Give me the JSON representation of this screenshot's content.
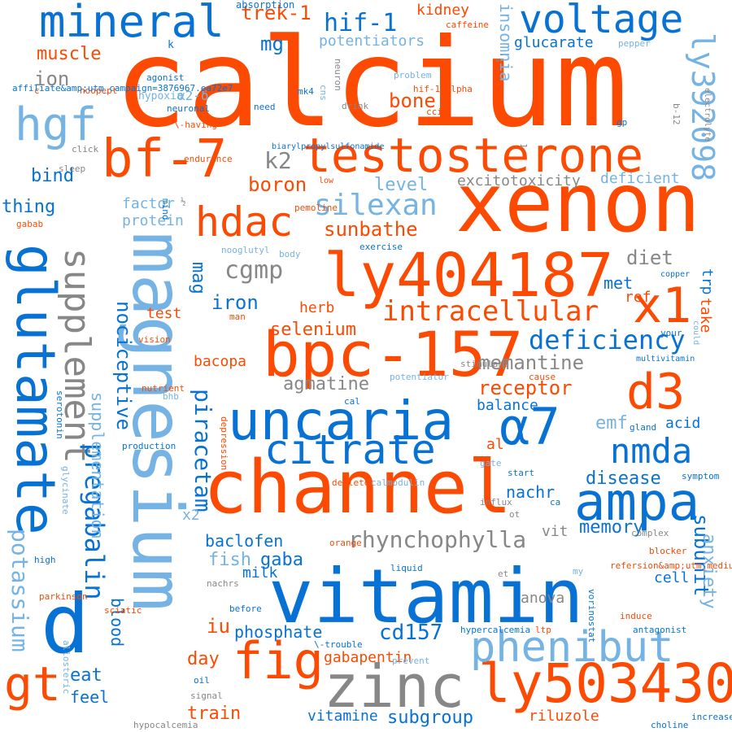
{
  "colors": {
    "orange": "#fc4a03",
    "blue": "#0872d4",
    "light_blue": "#74b3e3",
    "gray": "#878787"
  },
  "words": [
    {
      "text": "calcium",
      "color": "orange"
    },
    {
      "text": "magnesium",
      "color": "light_blue"
    },
    {
      "text": "xenon",
      "color": "orange"
    },
    {
      "text": "vitamin",
      "color": "blue"
    },
    {
      "text": "channel",
      "color": "orange"
    },
    {
      "text": "testosterone",
      "color": "orange"
    },
    {
      "text": "glutamate",
      "color": "blue"
    },
    {
      "text": "ly404187",
      "color": "orange"
    },
    {
      "text": "bpc-157",
      "color": "orange"
    },
    {
      "text": "uncaria",
      "color": "blue"
    },
    {
      "text": "zinc",
      "color": "gray"
    },
    {
      "text": "ly503430",
      "color": "orange"
    },
    {
      "text": "phenibut",
      "color": "light_blue"
    },
    {
      "text": "ampa",
      "color": "blue"
    },
    {
      "text": "α7",
      "color": "blue"
    },
    {
      "text": "d3",
      "color": "orange"
    },
    {
      "text": "x1",
      "color": "orange"
    },
    {
      "text": "fig",
      "color": "orange"
    },
    {
      "text": "d",
      "color": "blue"
    },
    {
      "text": "supplement",
      "color": "gray"
    },
    {
      "text": "mineral",
      "color": "blue"
    },
    {
      "text": "voltage",
      "color": "blue"
    },
    {
      "text": "bf-7",
      "color": "orange"
    },
    {
      "text": "hdac",
      "color": "orange"
    },
    {
      "text": "citrate",
      "color": "blue"
    },
    {
      "text": "nmda",
      "color": "blue"
    },
    {
      "text": "hgf",
      "color": "light_blue"
    },
    {
      "text": "ly392098",
      "color": "light_blue"
    },
    {
      "text": "gt",
      "color": "orange"
    },
    {
      "text": "silexan",
      "color": "light_blue"
    },
    {
      "text": "intracellular",
      "color": "orange"
    },
    {
      "text": "deficiency",
      "color": "blue"
    },
    {
      "text": "pregabalin",
      "color": "blue"
    },
    {
      "text": "piracetam",
      "color": "blue"
    },
    {
      "text": "rhynchophylla",
      "color": "gray"
    },
    {
      "text": "supplementation",
      "color": "light_blue"
    },
    {
      "text": "nociceptive",
      "color": "blue"
    },
    {
      "text": "potassium",
      "color": "light_blue"
    },
    {
      "text": "hif-1",
      "color": "blue"
    },
    {
      "text": "trek-1",
      "color": "orange"
    },
    {
      "text": "muscle",
      "color": "orange"
    },
    {
      "text": "ion",
      "color": "gray"
    },
    {
      "text": "mg",
      "color": "blue"
    },
    {
      "text": "potentiators",
      "color": "light_blue"
    },
    {
      "text": "kidney",
      "color": "orange"
    },
    {
      "text": "insomnia",
      "color": "light_blue"
    },
    {
      "text": "glucarate",
      "color": "blue"
    },
    {
      "text": "bone",
      "color": "orange"
    },
    {
      "text": "k2",
      "color": "gray"
    },
    {
      "text": "boron",
      "color": "orange"
    },
    {
      "text": "level",
      "color": "light_blue"
    },
    {
      "text": "excitotoxicity",
      "color": "gray"
    },
    {
      "text": "deficient",
      "color": "light_blue"
    },
    {
      "text": "bind",
      "color": "blue"
    },
    {
      "text": "thing",
      "color": "blue"
    },
    {
      "text": "factor",
      "color": "light_blue"
    },
    {
      "text": "protein",
      "color": "light_blue"
    },
    {
      "text": "sunbathe",
      "color": "orange"
    },
    {
      "text": "cgmp",
      "color": "gray"
    },
    {
      "text": "diet",
      "color": "gray"
    },
    {
      "text": "met",
      "color": "blue"
    },
    {
      "text": "trp",
      "color": "blue"
    },
    {
      "text": "mag",
      "color": "blue"
    },
    {
      "text": "iron",
      "color": "blue"
    },
    {
      "text": "herb",
      "color": "orange"
    },
    {
      "text": "ref",
      "color": "orange"
    },
    {
      "text": "take",
      "color": "orange"
    },
    {
      "text": "test",
      "color": "orange"
    },
    {
      "text": "selenium",
      "color": "orange"
    },
    {
      "text": "memantine",
      "color": "gray"
    },
    {
      "text": "agmatine",
      "color": "gray"
    },
    {
      "text": "receptor",
      "color": "orange"
    },
    {
      "text": "bacopa",
      "color": "orange"
    },
    {
      "text": "balance",
      "color": "blue"
    },
    {
      "text": "emf",
      "color": "light_blue"
    },
    {
      "text": "acid",
      "color": "blue"
    },
    {
      "text": "disease",
      "color": "blue"
    },
    {
      "text": "al",
      "color": "orange"
    },
    {
      "text": "nachr",
      "color": "blue"
    },
    {
      "text": "memory",
      "color": "blue"
    },
    {
      "text": "vit",
      "color": "gray"
    },
    {
      "text": "baclofen",
      "color": "blue"
    },
    {
      "text": "fish",
      "color": "light_blue"
    },
    {
      "text": "gaba",
      "color": "blue"
    },
    {
      "text": "x2",
      "color": "light_blue"
    },
    {
      "text": "subunit",
      "color": "blue"
    },
    {
      "text": "anxiety",
      "color": "light_blue"
    },
    {
      "text": "cell",
      "color": "blue"
    },
    {
      "text": "milk",
      "color": "blue"
    },
    {
      "text": "iu",
      "color": "orange"
    },
    {
      "text": "phosphate",
      "color": "blue"
    },
    {
      "text": "cd157",
      "color": "blue"
    },
    {
      "text": "day",
      "color": "orange"
    },
    {
      "text": "eat",
      "color": "blue"
    },
    {
      "text": "feel",
      "color": "blue"
    },
    {
      "text": "blood",
      "color": "blue"
    },
    {
      "text": "train",
      "color": "orange"
    },
    {
      "text": "vitamine",
      "color": "blue"
    },
    {
      "text": "subgroup",
      "color": "blue"
    },
    {
      "text": "riluzole",
      "color": "orange"
    },
    {
      "text": "gabapentin",
      "color": "orange"
    },
    {
      "text": "anova",
      "color": "gray"
    },
    {
      "text": "k",
      "color": "blue"
    },
    {
      "text": "absorption",
      "color": "blue"
    },
    {
      "text": "caffeine",
      "color": "orange"
    },
    {
      "text": "pepper",
      "color": "light_blue"
    },
    {
      "text": "agonist",
      "color": "blue"
    },
    {
      "text": "hypoxia",
      "color": "light_blue"
    },
    {
      "text": "α2-δ",
      "color": "light_blue"
    },
    {
      "text": "neuronal",
      "color": "blue"
    },
    {
      "text": "c",
      "color": "orange"
    },
    {
      "text": "noopept",
      "color": "orange"
    },
    {
      "text": "click",
      "color": "gray"
    },
    {
      "text": "sleep",
      "color": "gray"
    },
    {
      "text": "endurance",
      "color": "orange"
    },
    {
      "text": "\\-having",
      "color": "orange"
    },
    {
      "text": "½",
      "color": "gray"
    },
    {
      "text": "gabab",
      "color": "orange"
    },
    {
      "text": "mind",
      "color": "blue"
    },
    {
      "text": "mk4",
      "color": "blue"
    },
    {
      "text": "cns",
      "color": "light_blue"
    },
    {
      "text": "neuron",
      "color": "gray"
    },
    {
      "text": "problem",
      "color": "light_blue"
    },
    {
      "text": "hif-1-alpha",
      "color": "orange"
    },
    {
      "text": "drink",
      "color": "gray"
    },
    {
      "text": "cci",
      "color": "orange"
    },
    {
      "text": "need",
      "color": "blue"
    },
    {
      "text": "gp",
      "color": "blue"
    },
    {
      "text": "b-12",
      "color": "gray"
    },
    {
      "text": "electrolyte",
      "color": "gray"
    },
    {
      "text": "biarylpropylsulfonamide",
      "color": "blue"
    },
    {
      "text": "low",
      "color": "orange"
    },
    {
      "text": "pemoline",
      "color": "orange"
    },
    {
      "text": "nooglutyl",
      "color": "light_blue"
    },
    {
      "text": "exercise",
      "color": "blue"
    },
    {
      "text": "body",
      "color": "light_blue"
    },
    {
      "text": "man",
      "color": "orange"
    },
    {
      "text": "copper",
      "color": "blue"
    },
    {
      "text": "vision",
      "color": "orange"
    },
    {
      "text": "your",
      "color": "blue"
    },
    {
      "text": "multivitamin",
      "color": "blue"
    },
    {
      "text": "cause",
      "color": "orange"
    },
    {
      "text": "stimulant",
      "color": "gray"
    },
    {
      "text": "potentiator",
      "color": "light_blue"
    },
    {
      "text": "cal",
      "color": "blue"
    },
    {
      "text": "nutrient",
      "color": "orange"
    },
    {
      "text": "bhb",
      "color": "light_blue"
    },
    {
      "text": "gland",
      "color": "blue"
    },
    {
      "text": "could",
      "color": "light_blue"
    },
    {
      "text": "affiliate&amp;utm_campaign=3876967.ea72e7",
      "color": "blue"
    },
    {
      "text": "serotonin",
      "color": "blue"
    },
    {
      "text": "production",
      "color": "blue"
    },
    {
      "text": "depression",
      "color": "orange"
    },
    {
      "text": "glycinate",
      "color": "light_blue"
    },
    {
      "text": "gate",
      "color": "light_blue"
    },
    {
      "text": "start",
      "color": "blue"
    },
    {
      "text": "deplete",
      "color": "orange"
    },
    {
      "text": "calmodulin",
      "color": "light_blue"
    },
    {
      "text": "influx",
      "color": "gray"
    },
    {
      "text": "ot",
      "color": "gray"
    },
    {
      "text": "ca",
      "color": "blue"
    },
    {
      "text": "symptom",
      "color": "blue"
    },
    {
      "text": "orange",
      "color": "orange"
    },
    {
      "text": "complex",
      "color": "gray"
    },
    {
      "text": "blocker",
      "color": "orange"
    },
    {
      "text": "high",
      "color": "blue"
    },
    {
      "text": "liquid",
      "color": "blue"
    },
    {
      "text": "refersion&amp;utm_medium",
      "color": "orange"
    },
    {
      "text": "my",
      "color": "light_blue"
    },
    {
      "text": "nachrs",
      "color": "gray"
    },
    {
      "text": "before",
      "color": "blue"
    },
    {
      "text": "parkinson",
      "color": "orange"
    },
    {
      "text": "sciatic",
      "color": "orange"
    },
    {
      "text": "induce",
      "color": "orange"
    },
    {
      "text": "antagonist",
      "color": "blue"
    },
    {
      "text": "ltp",
      "color": "orange"
    },
    {
      "text": "hypercalcemia",
      "color": "blue"
    },
    {
      "text": "\\-trouble",
      "color": "blue"
    },
    {
      "text": "prevent",
      "color": "light_blue"
    },
    {
      "text": "allosteric",
      "color": "light_blue"
    },
    {
      "text": "oil",
      "color": "blue"
    },
    {
      "text": "signal",
      "color": "gray"
    },
    {
      "text": "hypocalcemia",
      "color": "gray"
    },
    {
      "text": "increase",
      "color": "blue"
    },
    {
      "text": "choline",
      "color": "blue"
    },
    {
      "text": "vorinostat",
      "color": "blue"
    },
    {
      "text": "et",
      "color": "gray"
    },
    {
      "text": "'s",
      "color": "gray"
    },
    {
      "text": "1",
      "color": "gray"
    },
    {
      "text": "b",
      "color": "gray"
    }
  ]
}
